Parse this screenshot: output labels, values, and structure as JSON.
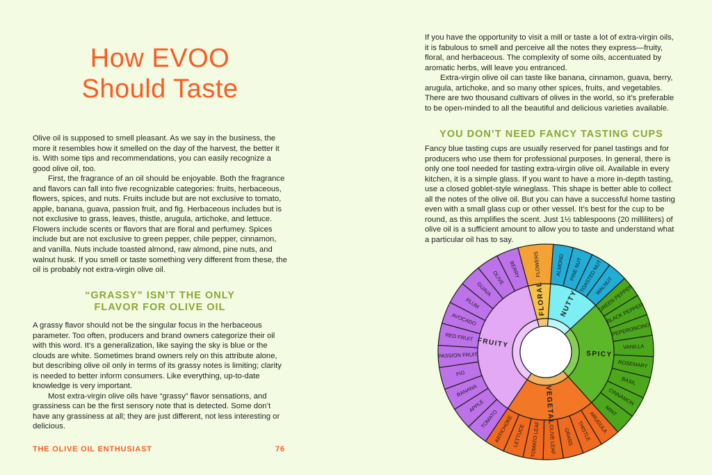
{
  "left_page": {
    "title_lines": [
      "How EVOO",
      "Should Taste"
    ],
    "intro_paragraphs": [
      "Olive oil is supposed to smell pleasant. As we say in the business, the more it resembles how it smelled on the day of the harvest, the better it is. With some tips and recommendations, you can easily recognize a good olive oil, too.",
      "First, the fragrance of an oil should be enjoyable. Both the fragrance and flavors can fall into five recognizable categories: fruits, herbaceous, flowers, spices, and nuts. Fruits include but are not exclusive to tomato, apple, banana, guava, passion fruit, and fig. Herbaceous includes but is not exclusive to grass, leaves, thistle, arugula, artichoke, and lettuce. Flowers include scents or flavors that are floral and perfumey. Spices include but are not exclusive to green pepper, chile pepper, cinnamon, and vanilla. Nuts include toasted almond, raw almond, pine nuts, and walnut husk. If you smell or taste something very different from these, the oil is probably not extra-virgin olive oil."
    ],
    "subheading_lines": [
      "“GRASSY” ISN’T THE ONLY",
      "FLAVOR FOR OLIVE OIL"
    ],
    "grassy_paragraphs": [
      "A grassy flavor should not be the singular focus in the herbaceous parameter. Too often, producers and brand owners categorize their oil with this word. It’s a generalization, like saying the sky is blue or the clouds are white. Sometimes brand owners rely on this attribute alone, but describing olive oil only in terms of its grassy notes is limiting; clarity is needed to better inform consumers. Like everything, up-to-date knowledge is very important.",
      "Most extra-virgin olive oils have “grassy” flavor sensations, and grassiness can be the first sensory note that is detected. Some don’t have any grassiness at all; they are just different, not less interesting or delicious."
    ],
    "footer_title": "THE OLIVE OIL ENTHUSIAST",
    "page_number": "76"
  },
  "right_page": {
    "paragraphs": [
      "If you have the opportunity to visit a mill or taste a lot of extra-virgin oils, it is fabulous to smell and perceive all the notes they express—fruity, floral, and herbaceous. The complexity of some oils, accentuated by aromatic herbs, will leave you entranced.",
      "Extra-virgin olive oil can taste like banana, cinnamon, guava, berry, arugula, artichoke, and so many other spices, fruits, and vegetables. There are two thousand cultivars of olives in the world, so it’s preferable to be open-minded to all the beautiful and delicious varieties available."
    ],
    "subheading": "YOU DON’T NEED FANCY TASTING CUPS",
    "cups_paragraph": "Fancy blue tasting cups are usually reserved for panel tastings and for producers who use them for professional purposes. In general, there is only one tool needed for tasting extra-virgin olive oil. Available in every kitchen, it is a simple glass. If you want to have a more in-depth tasting, use a closed goblet-style wineglass. This shape is better able to collect all the notes of the olive oil. But you can have a successful home tasting even with a small glass cup or other vessel. It’s best for the cup to be round, as this amplifies the scent. Just 1½ tablespoons (20 milliliters) of olive oil is a sufficient amount to allow you to taste and understand what a particular oil has to say."
  },
  "flavor_wheel": {
    "categories": [
      {
        "name": "FLORAL",
        "outer": "#f5a235",
        "inner": "#f7c247",
        "hub": "#f3c77a",
        "items": [
          "FLOWERS"
        ]
      },
      {
        "name": "NUTTY",
        "outer": "#22acd6",
        "inner": "#7beff3",
        "hub": "#bdf6f8",
        "items": [
          "ALMOND",
          "PINE NUT",
          "TOASTED NUT",
          "WALNUT"
        ]
      },
      {
        "name": "SPICY",
        "outer": "#4ca71c",
        "inner": "#5cb82a",
        "hub": "#84d052",
        "items": [
          "GREEN PEPPER",
          "BLACK PEPPER",
          "PEPERONCINO",
          "VANILLA",
          "ROSEMARY",
          "BASIL",
          "CINNAMON",
          "MINT"
        ]
      },
      {
        "name": "VEGETAL",
        "outer": "#f06a1f",
        "inner": "#f27726",
        "hub": "#f2b35e",
        "items": [
          "ARUGULA",
          "THISTLE",
          "GRASS",
          "OLIVE LEAF",
          "TOMATO LEAF",
          "LETTUCE",
          "ARTICHOKE"
        ]
      },
      {
        "name": "FRUITY",
        "outer": "#bd72ea",
        "inner": "#e3a9f4",
        "hub": "#eec8f8",
        "items": [
          "TOMATO",
          "APPLE",
          "BANANA",
          "FIG",
          "PASSION FRUIT",
          "RED FRUIT",
          "AVOCADO",
          "PLUM",
          "GUAVA",
          "OLIVE",
          "BERRY"
        ]
      }
    ]
  },
  "colors": {
    "title": "#fb5a22",
    "subheading": "#8aa633",
    "background": "#f3fce3"
  }
}
